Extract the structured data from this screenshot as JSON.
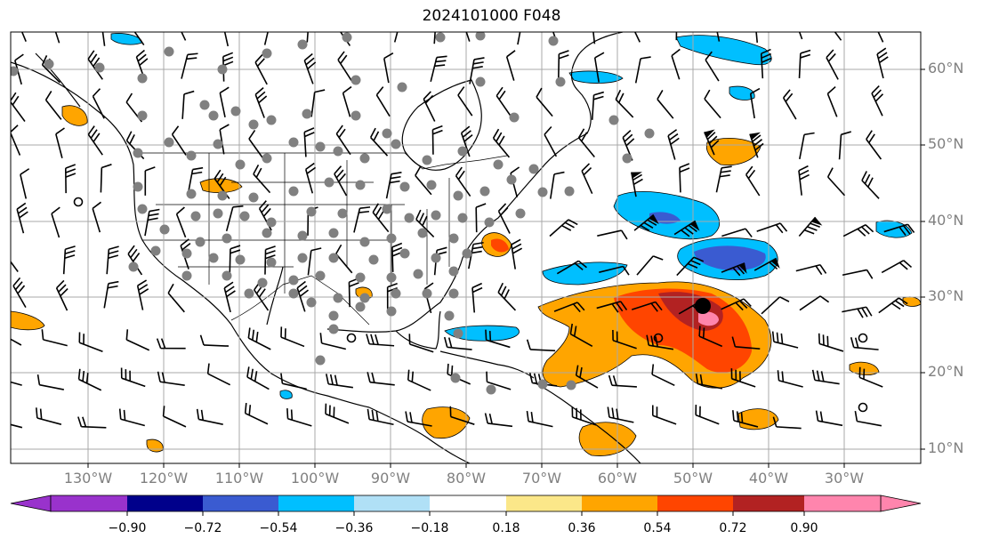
{
  "title": "2024101000 F048",
  "lat_labels": [
    "60°N",
    "50°N",
    "40°N",
    "30°N",
    "20°N",
    "10°N"
  ],
  "lon_labels": [
    "130°W",
    "120°W",
    "110°W",
    "100°W",
    "90°W",
    "80°W",
    "70°W",
    "60°W",
    "50°W",
    "40°W",
    "30°W"
  ],
  "colorbar": {
    "ticks": [
      "−0.90",
      "−0.72",
      "−0.54",
      "−0.36",
      "−0.18",
      "0.18",
      "0.36",
      "0.54",
      "0.72",
      "0.90"
    ],
    "colors": [
      "#9932cc",
      "#00008b",
      "#3a5bd1",
      "#00bfff",
      "#b0e0f6",
      "#ffffff",
      "#fbe789",
      "#ffa500",
      "#ff4500",
      "#b22222",
      "#ff85ad"
    ]
  }
}
